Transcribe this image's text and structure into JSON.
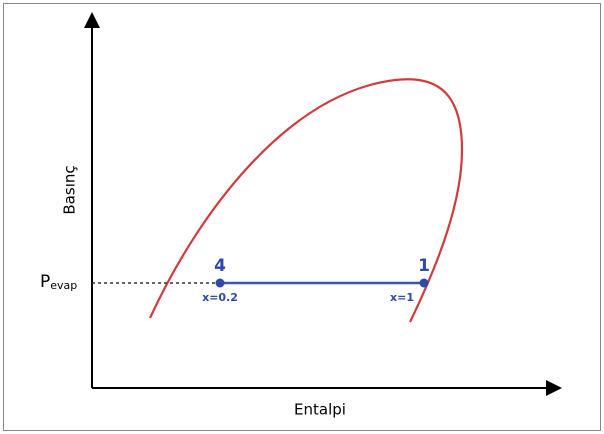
{
  "diagram": {
    "y_axis_label": "Basınç",
    "x_axis_label": "Entalpi",
    "pressure_label": {
      "main": "P",
      "sub": "evap"
    },
    "points": [
      {
        "label": "4",
        "quality": "x=0.2"
      },
      {
        "label": "1",
        "quality": "x=1"
      }
    ]
  }
}
